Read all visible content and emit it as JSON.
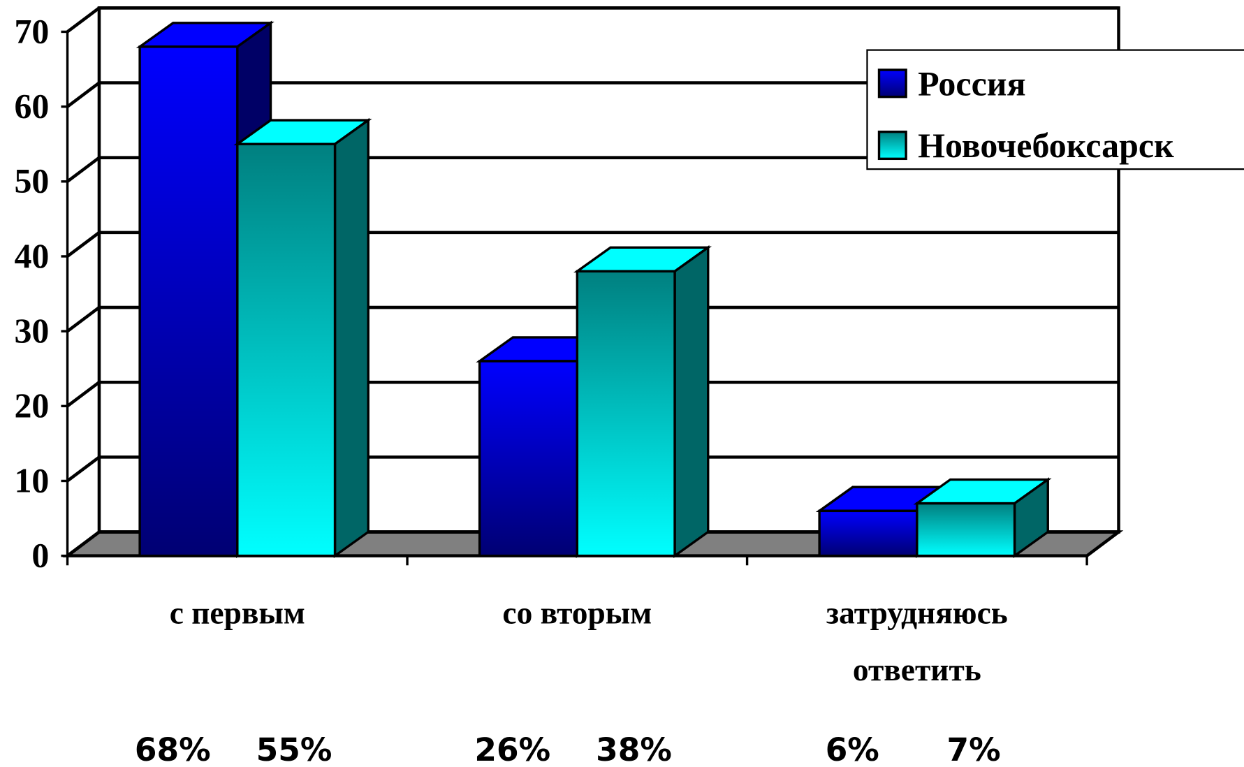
{
  "chart_data": {
    "type": "bar3d",
    "categories": [
      "с первым",
      "со вторым",
      "затрудняюсь ответить"
    ],
    "series": [
      {
        "name": "Россия",
        "color": "#0000ff",
        "values": [
          68,
          26,
          6
        ],
        "value_labels": [
          "68%",
          "26%",
          "6%"
        ]
      },
      {
        "name": "Новочебоксарск",
        "color": "#00ffff",
        "values": [
          55,
          38,
          7
        ],
        "value_labels": [
          "55%",
          "38%",
          "7%"
        ]
      }
    ],
    "ylim": [
      0,
      70
    ],
    "yticks": [
      0,
      10,
      20,
      30,
      40,
      50,
      60,
      70
    ],
    "grid": true,
    "legend": "top-right"
  }
}
